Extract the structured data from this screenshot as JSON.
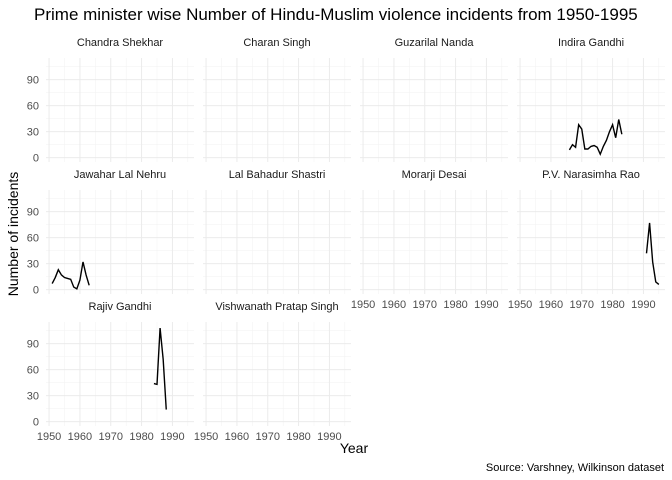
{
  "chart_data": {
    "type": "line",
    "title": "Prime minister wise Number of Hindu-Muslim violence incidents from 1950-1995",
    "xlabel": "Year",
    "ylabel": "Number of incidents",
    "caption": "Source: Varshney, Wilkinson dataset",
    "xlim": [
      1949,
      1997
    ],
    "ylim": [
      -5,
      115
    ],
    "x_ticks": [
      1950,
      1960,
      1970,
      1980,
      1990
    ],
    "y_ticks": [
      0,
      30,
      60,
      90
    ],
    "grid": true,
    "layout": "facet_wrap 4 columns",
    "panels": [
      {
        "name": "Chandra Shekhar",
        "points": []
      },
      {
        "name": "Charan Singh",
        "points": []
      },
      {
        "name": "Guzarilal Nanda",
        "points": []
      },
      {
        "name": "Indira Gandhi",
        "points": [
          [
            1966,
            9
          ],
          [
            1967,
            15
          ],
          [
            1968,
            12
          ],
          [
            1969,
            38
          ],
          [
            1970,
            33
          ],
          [
            1971,
            10
          ],
          [
            1972,
            10
          ],
          [
            1973,
            13
          ],
          [
            1974,
            14
          ],
          [
            1975,
            12
          ],
          [
            1976,
            4
          ],
          [
            1977,
            13
          ],
          [
            1978,
            20
          ],
          [
            1979,
            30
          ],
          [
            1980,
            38
          ],
          [
            1981,
            23
          ],
          [
            1982,
            44
          ],
          [
            1983,
            27
          ]
        ]
      },
      {
        "name": "Jawahar Lal Nehru",
        "points": [
          [
            1951,
            7
          ],
          [
            1952,
            14
          ],
          [
            1953,
            23
          ],
          [
            1954,
            17
          ],
          [
            1955,
            14
          ],
          [
            1956,
            13
          ],
          [
            1957,
            12
          ],
          [
            1958,
            3
          ],
          [
            1959,
            1
          ],
          [
            1960,
            11
          ],
          [
            1961,
            32
          ],
          [
            1962,
            17
          ],
          [
            1963,
            5
          ]
        ]
      },
      {
        "name": "Lal Bahadur Shastri",
        "points": []
      },
      {
        "name": "Morarji Desai",
        "points": []
      },
      {
        "name": "P.V. Narasimha Rao",
        "points": [
          [
            1991,
            42
          ],
          [
            1992,
            77
          ],
          [
            1993,
            32
          ],
          [
            1994,
            9
          ],
          [
            1995,
            6
          ]
        ]
      },
      {
        "name": "Rajiv Gandhi",
        "points": [
          [
            1984,
            44
          ],
          [
            1985,
            43
          ],
          [
            1986,
            108
          ],
          [
            1987,
            72
          ],
          [
            1988,
            14
          ]
        ]
      },
      {
        "name": "Vishwanath Pratap Singh",
        "points": []
      }
    ]
  }
}
